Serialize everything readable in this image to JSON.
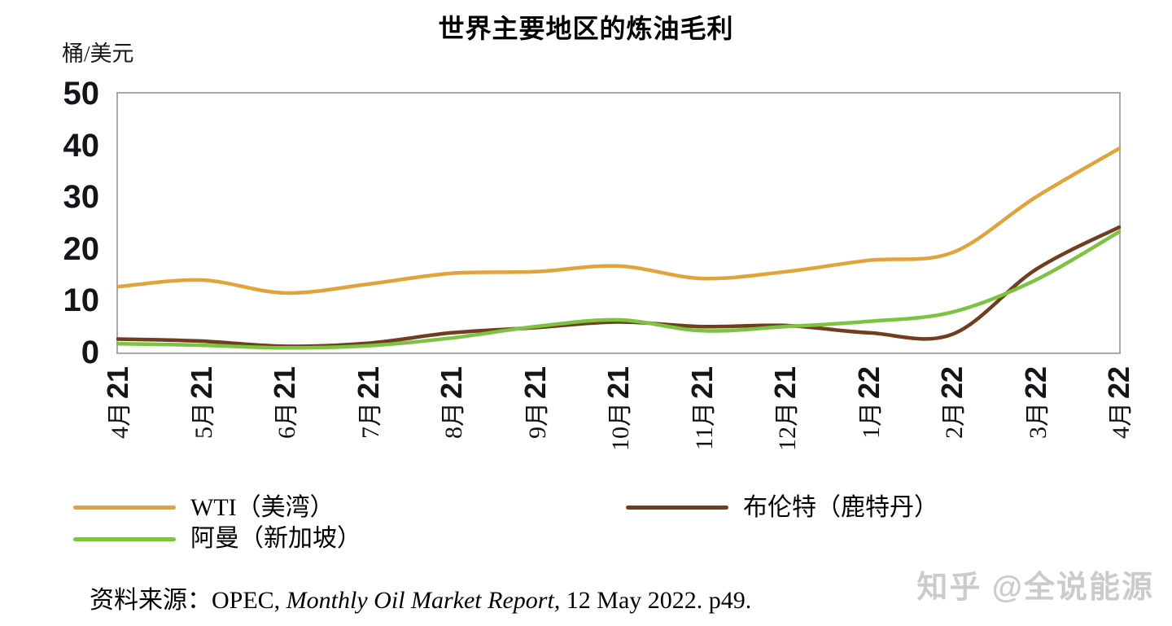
{
  "title": "世界主要地区的炼油毛利",
  "y_axis_unit": "桶/美元",
  "source": {
    "prefix": "资料来源：OPEC, ",
    "italic": "Monthly Oil Market Report,",
    "suffix": " 12 May 2022. p49."
  },
  "watermark": "知乎 @全说能源",
  "legend": {
    "items": [
      {
        "label": "WTI（美湾）",
        "series_index": 0,
        "column": "left",
        "row": 0
      },
      {
        "label": "阿曼（新加坡）",
        "series_index": 2,
        "column": "left",
        "row": 1
      },
      {
        "label": "布伦特（鹿特丹）",
        "series_index": 1,
        "column": "right",
        "row": 0
      }
    ]
  },
  "chart_data": {
    "type": "line",
    "title": "世界主要地区的炼油毛利",
    "xlabel": "",
    "ylabel": "桶/美元",
    "ylim": [
      0,
      50
    ],
    "yticks": [
      0,
      10,
      20,
      30,
      40,
      50
    ],
    "grid": false,
    "legend_position": "bottom",
    "categories": [
      "4月21",
      "5月21",
      "6月21",
      "7月21",
      "8月21",
      "9月21",
      "10月21",
      "11月21",
      "12月21",
      "1月22",
      "2月22",
      "3月22",
      "4月22"
    ],
    "series": [
      {
        "name": "WTI（美湾）",
        "color": "#E2A33B",
        "values": [
          12.7,
          14.0,
          11.5,
          13.2,
          15.3,
          15.6,
          16.7,
          14.3,
          15.6,
          17.8,
          19.3,
          30.0,
          39.4
        ]
      },
      {
        "name": "布伦特（鹿特丹）",
        "color": "#703E1F",
        "values": [
          2.6,
          2.2,
          1.2,
          1.8,
          3.8,
          4.8,
          5.9,
          5.0,
          5.2,
          3.8,
          3.5,
          16.0,
          24.2
        ]
      },
      {
        "name": "阿曼（新加坡）",
        "color": "#7CC342",
        "values": [
          1.7,
          1.4,
          0.9,
          1.3,
          2.8,
          5.0,
          6.3,
          4.2,
          5.0,
          6.0,
          7.8,
          14.0,
          23.3
        ]
      }
    ],
    "colors": {
      "plot_border": "#A8A8A8",
      "tick_label": "#14141A",
      "watermark": "#CBCBC9"
    }
  }
}
